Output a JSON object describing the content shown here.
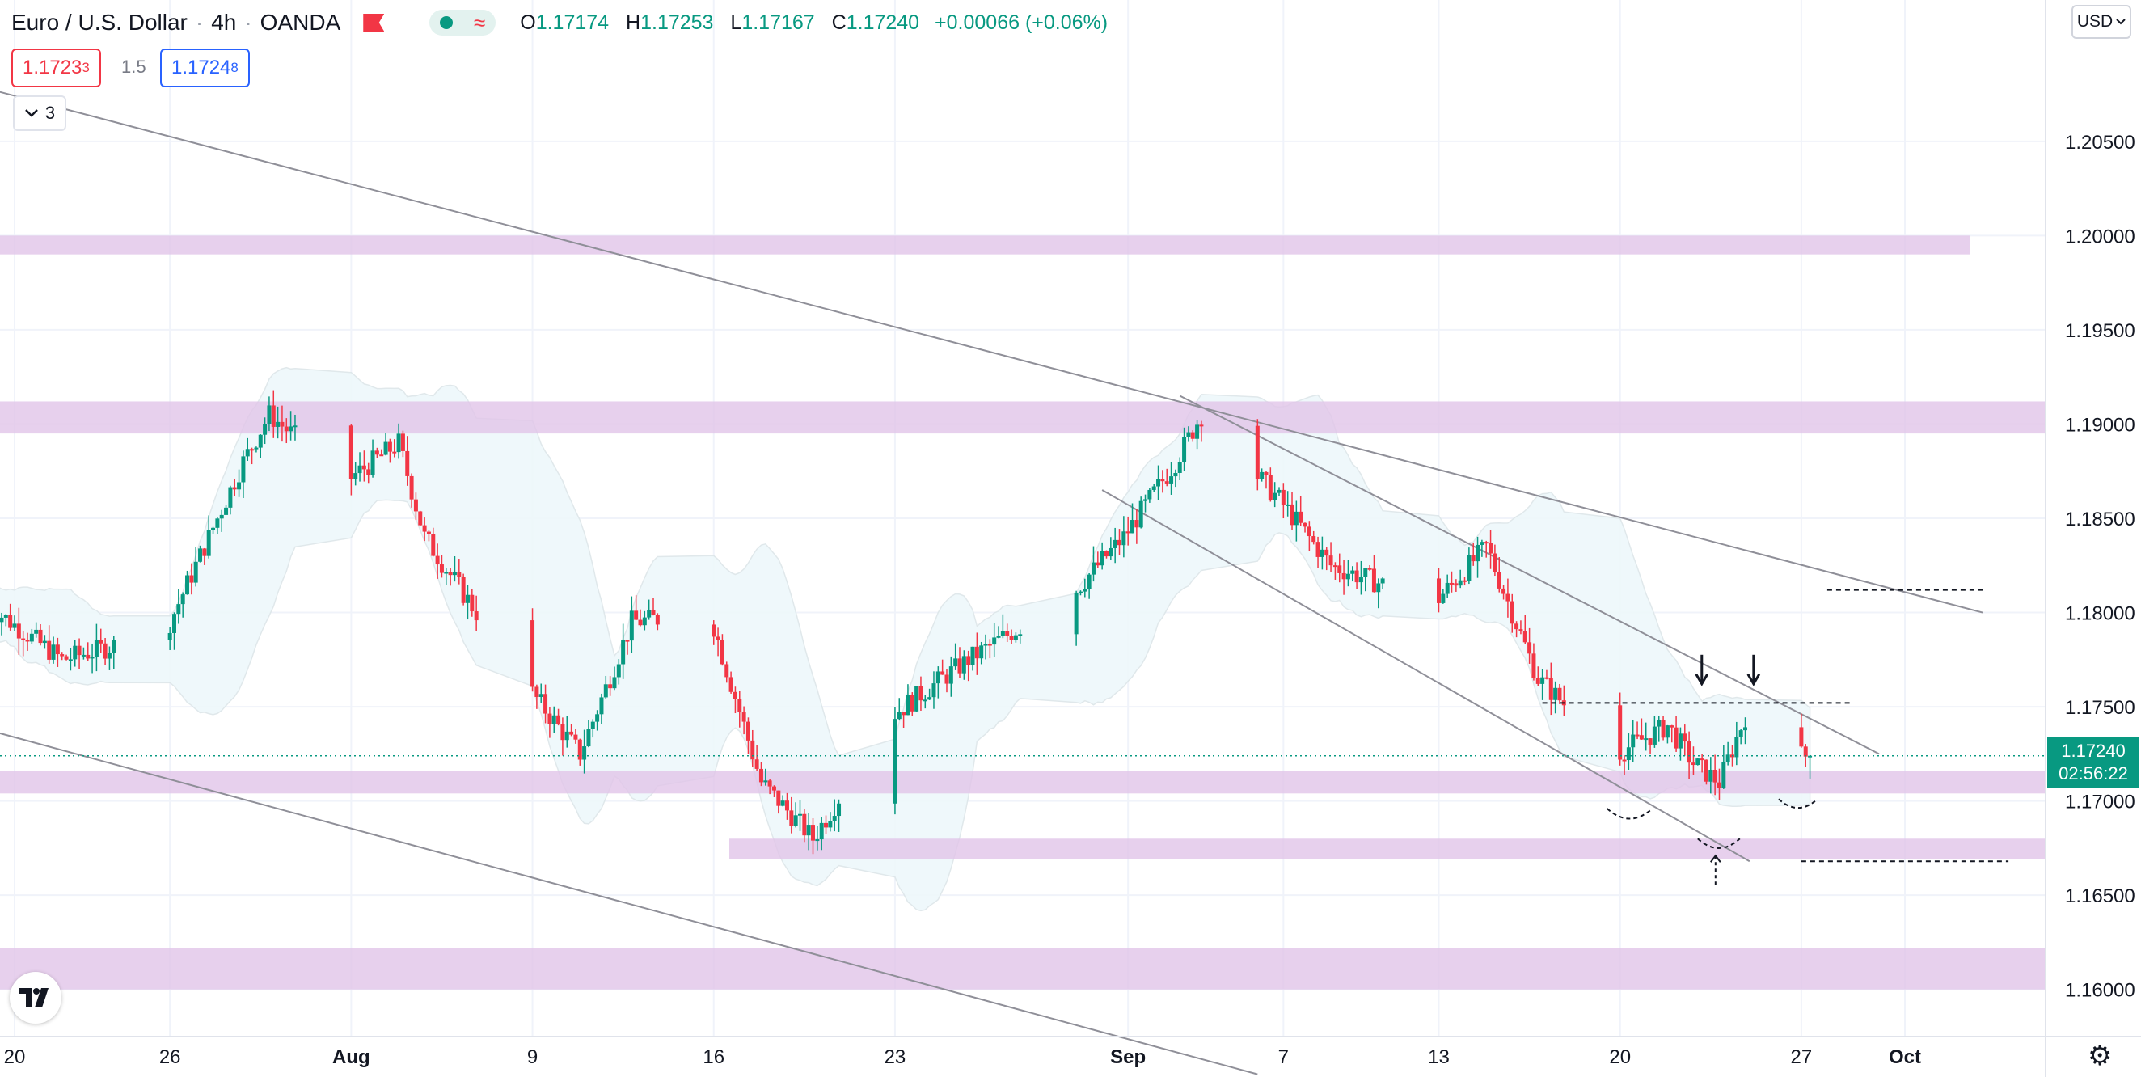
{
  "header": {
    "symbol_title": "Euro / U.S. Dollar",
    "interval": "4h",
    "broker": "OANDA",
    "ohlc": {
      "o_label": "O",
      "o": "1.17174",
      "h_label": "H",
      "h": "1.17253",
      "l_label": "L",
      "l": "1.17167",
      "c_label": "C",
      "c": "1.17240",
      "change": "+0.00066 (+0.06%)"
    }
  },
  "trade": {
    "sell_price": "1.1723",
    "sell_price_small": "3",
    "spread": "1.5",
    "buy_price": "1.1724",
    "buy_price_small": "8"
  },
  "indicators_count": "3",
  "currency": "USD",
  "price_tag": {
    "price": "1.17240",
    "countdown": "02:56:22"
  },
  "colors": {
    "up": "#089981",
    "down": "#f23645",
    "zone": "#e1c4e9",
    "band": "#eef8fb"
  },
  "icons": [
    "flag-icon",
    "chevron-down-icon",
    "tradingview-logo-icon",
    "gear-icon"
  ],
  "chart_data": {
    "type": "candlestick",
    "title": "Euro / U.S. Dollar, 4h, OANDA",
    "ylim": [
      1.1575,
      1.2125
    ],
    "y_ticks": [
      "1.20500",
      "1.20000",
      "1.19500",
      "1.19000",
      "1.18500",
      "1.18000",
      "1.17500",
      "1.17000",
      "1.16500",
      "1.16000"
    ],
    "x_ticks": [
      {
        "label": "20",
        "date": "2021-07-20"
      },
      {
        "label": "26",
        "date": "2021-07-26"
      },
      {
        "label": "Aug",
        "date": "2021-08-02"
      },
      {
        "label": "9",
        "date": "2021-08-09"
      },
      {
        "label": "16",
        "date": "2021-08-16"
      },
      {
        "label": "23",
        "date": "2021-08-23"
      },
      {
        "label": "Sep",
        "date": "2021-09-01"
      },
      {
        "label": "7",
        "date": "2021-09-07"
      },
      {
        "label": "13",
        "date": "2021-09-13"
      },
      {
        "label": "20",
        "date": "2021-09-20"
      },
      {
        "label": "27",
        "date": "2021-09-27"
      },
      {
        "label": "Oct",
        "date": "2021-10-01"
      }
    ],
    "last_price": 1.1724,
    "price_path": [
      [
        "2021-07-19",
        1.1805
      ],
      [
        "2021-07-22",
        1.1775
      ],
      [
        "2021-07-26",
        1.179
      ],
      [
        "2021-07-29",
        1.188
      ],
      [
        "2021-07-30",
        1.1905
      ],
      [
        "2021-08-02",
        1.187
      ],
      [
        "2021-08-04",
        1.189
      ],
      [
        "2021-08-05",
        1.184
      ],
      [
        "2021-08-09",
        1.176
      ],
      [
        "2021-08-11",
        1.1725
      ],
      [
        "2021-08-13",
        1.1795
      ],
      [
        "2021-08-16",
        1.18
      ],
      [
        "2021-08-18",
        1.171
      ],
      [
        "2021-08-20",
        1.168
      ],
      [
        "2021-08-23",
        1.1745
      ],
      [
        "2021-08-26",
        1.1775
      ],
      [
        "2021-08-30",
        1.181
      ],
      [
        "2021-09-01",
        1.184
      ],
      [
        "2021-09-03",
        1.188
      ],
      [
        "2021-09-04",
        1.1905
      ],
      [
        "2021-09-07",
        1.186
      ],
      [
        "2021-09-09",
        1.1825
      ],
      [
        "2021-09-13",
        1.1805
      ],
      [
        "2021-09-15",
        1.1835
      ],
      [
        "2021-09-17",
        1.1765
      ],
      [
        "2021-09-20",
        1.1725
      ],
      [
        "2021-09-22",
        1.174
      ],
      [
        "2021-09-23",
        1.172
      ],
      [
        "2021-09-24",
        1.171
      ],
      [
        "2021-09-25",
        1.1745
      ],
      [
        "2021-09-27",
        1.1724
      ]
    ],
    "zones": [
      {
        "from": 1.2,
        "to": 1.199
      },
      {
        "from": 1.1912,
        "to": 1.1895
      },
      {
        "from": 1.1716,
        "to": 1.1704
      },
      {
        "from": 1.168,
        "to": 1.1669
      },
      {
        "from": 1.1622,
        "to": 1.16
      }
    ],
    "dashed_levels": [
      1.1812,
      1.1752,
      1.1668
    ],
    "grid": true
  }
}
